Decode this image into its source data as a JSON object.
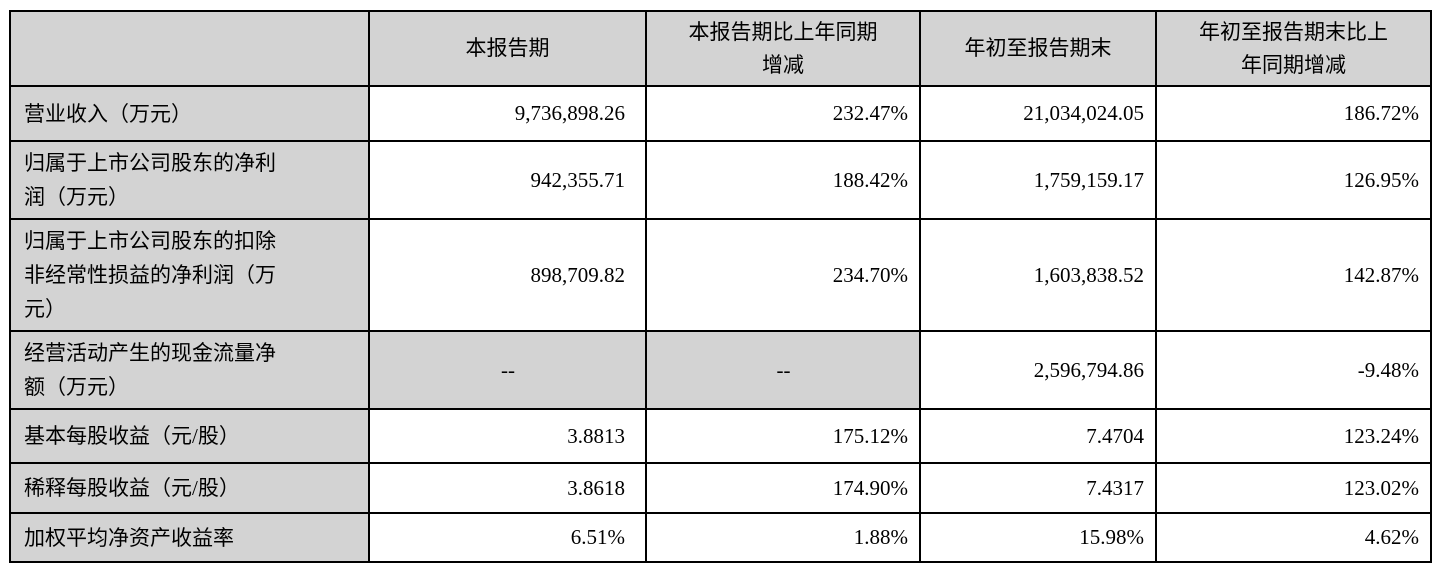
{
  "table": {
    "headers": [
      "",
      "本报告期",
      "本报告期比上年同期\n增减",
      "年初至报告期末",
      "年初至报告期末比上\n年同期增减"
    ],
    "rows": [
      {
        "label": "营业收入（万元）",
        "values": [
          "9,736,898.26",
          "232.47%",
          "21,034,024.05",
          "186.72%"
        ]
      },
      {
        "label": "归属于上市公司股东的净利\n润（万元）",
        "values": [
          "942,355.71",
          "188.42%",
          "1,759,159.17",
          "126.95%"
        ]
      },
      {
        "label": "归属于上市公司股东的扣除\n非经常性损益的净利润（万\n元）",
        "values": [
          "898,709.82",
          "234.70%",
          "1,603,838.52",
          "142.87%"
        ]
      },
      {
        "label": "经营活动产生的现金流量净\n额（万元）",
        "values": [
          "--",
          "--",
          "2,596,794.86",
          "-9.48%"
        ]
      },
      {
        "label": "基本每股收益（元/股）",
        "values": [
          "3.8813",
          "175.12%",
          "7.4704",
          "123.24%"
        ]
      },
      {
        "label": "稀释每股收益（元/股）",
        "values": [
          "3.8618",
          "174.90%",
          "7.4317",
          "123.02%"
        ]
      },
      {
        "label": "加权平均净资产收益率",
        "values": [
          "6.51%",
          "1.88%",
          "15.98%",
          "4.62%"
        ]
      }
    ],
    "empty_placeholder": "--"
  },
  "colors": {
    "header_bg": "#d3d3d3",
    "label_bg": "#d3d3d3",
    "border": "#000000",
    "page_bg": "#ffffff"
  }
}
